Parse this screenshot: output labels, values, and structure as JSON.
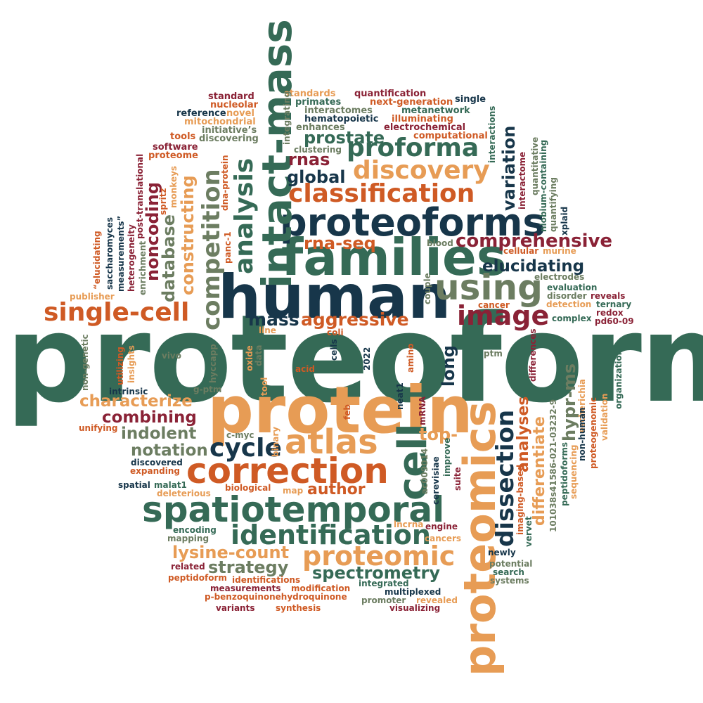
{
  "colors": {
    "dark_green": "#356a56",
    "navy": "#17364a",
    "orange": "#e79c55",
    "rust": "#cf5a24",
    "crimson": "#8a2236",
    "sage": "#6c7d61"
  },
  "words": {
    "proteoform": "proteoform",
    "human": "human",
    "protein": "protein",
    "families": "families",
    "proteoforms": "proteoforms",
    "intact_mass": "intact-mass",
    "proteomics": "proteomics",
    "correction": "correction",
    "spatiotemporal": "spatiotemporal",
    "using": "using",
    "atlas": "atlas",
    "cell": "cell",
    "classification": "classification",
    "discovery": "discovery",
    "proforma": "proforma",
    "single_cell": "single-cell",
    "image": "image",
    "identification": "identification",
    "dissection": "dissection",
    "proteomic": "proteomic",
    "competition": "competition",
    "analysis": "analysis",
    "cycle": "cycle",
    "lysine_count": "lysine-count",
    "aggressive": "aggressive",
    "comprehensive": "comprehensive",
    "elucidating": "elucidating",
    "prostate": "prostate",
    "mass": "mass",
    "rnas": "rnas",
    "global": "global",
    "rna_seq": "rna-seq",
    "spectrometry": "spectrometry",
    "strategy": "strategy",
    "characterize": "characterize",
    "combining": "combining",
    "indolent": "indolent",
    "notation": "notation",
    "author": "author",
    "database": "database",
    "noncoding": "noncoding",
    "constructing": "constructing",
    "variation": "variation",
    "long": "long",
    "analyses": "analyses",
    "differentiate": "differentiate",
    "hypr_ms": "hypr-ms",
    "top": "top-",
    "standard": "standard",
    "nucleolar": "nucleolar",
    "reference": "reference",
    "novel": "novel",
    "mitochondrial": "mitochondrial",
    "tools": "tools",
    "software": "software",
    "proteome": "proteome",
    "initiatives": "initiative’s",
    "discovering": "discovering",
    "standards": "standards",
    "primates": "primates",
    "interactomes": "interactomes",
    "hematopoietic": "hematopoietic",
    "enhances": "enhances",
    "clustering": "clustering",
    "quantification": "quantification",
    "next_generation": "next-generation",
    "single": "single",
    "metanetwork": "metanetwork",
    "illuminating": "illuminating",
    "electrochemical": "electrochemical",
    "computational": "computational",
    "integrating": "integrating",
    "interactions": "interactions",
    "interactome": "interactome",
    "quantitative": "quantitative",
    "niobium": "niobium-containing",
    "quantifying": "quantifying",
    "xplaid": "xplaid",
    "spritz": "spritz",
    "monkeys": "monkeys",
    "dna_protein": "dna-protein",
    "panc1": "panc-1",
    "post_translational": "post-translational",
    "heterogeneity": "heterogeneity",
    "enrichment": "enrichment",
    "measurements_q": "measurements”",
    "saccharomyces": "saccharomyces",
    "elucidating_q": "“elucidating",
    "publisher": "publisher",
    "blood": "blood",
    "couple": "couple",
    "cellular": "cellular",
    "murine": "murine",
    "electrodes": "electrodes",
    "evaluation": "evaluation",
    "disorder": "disorder",
    "reveals": "reveals",
    "detection": "detection",
    "ternary": "ternary",
    "cancer": "cancer",
    "complex": "complex",
    "pd60_09": "pd60-09",
    "line": "line",
    "coli": "coli",
    "ptm": "ptm",
    "differences": "differences",
    "organization": "organization",
    "non_genetic": "non-genetic",
    "utilizing": "utilizing",
    "insights": "insights",
    "vivo": "vivo",
    "hyccapp": "hyccapp",
    "oxide": "oxide",
    "data": "data",
    "acid": "acid",
    "cells": "cells",
    "year_2022": "2022",
    "amino": "amino",
    "intrinsic": "intrinsic",
    "g_ptm": "g-ptm",
    "tool": "tool",
    "neat1": "neat1",
    "feb": "feb",
    "binary": "binary",
    "mrna": "mRNA",
    "ac009014": "ac009014",
    "cerevisiae": "cerevisiae",
    "improve": "improve",
    "suite": "suite",
    "imaging_based": "imaging-based",
    "doi": "101038s41586-021-03232-9",
    "vervet": "vervet",
    "peptidoforms": "peptidoforms",
    "sequencing": "sequencing",
    "escherichia": "escherichia",
    "non_human": "non-human",
    "proteogenomic": "proteogenomic",
    "validation": "validation",
    "redox": "redox",
    "unifying": "unifying",
    "c_myc": "c-myc",
    "discovered": "discovered",
    "expanding": "expanding",
    "spatial": "spatial",
    "malat1": "malat1",
    "biological": "biological",
    "map": "map",
    "deleterious": "deleterious",
    "lncrna": "lncrna",
    "engine": "engine",
    "encoding": "encoding",
    "mapping": "mapping",
    "cancers": "cancers",
    "related": "related",
    "newly": "newly",
    "potential": "potential",
    "search": "search",
    "systems": "systems",
    "peptidoform": "peptidoform",
    "identifications": "identifications",
    "measurements": "measurements",
    "modification": "modification",
    "integrated": "integrated",
    "multiplexed": "multiplexed",
    "p_benzo": "p-benzoquinonehydroquinone",
    "promoter": "promoter",
    "revealed": "revealed",
    "variants": "variants",
    "synthesis": "synthesis",
    "visualizing": "visualizing"
  }
}
